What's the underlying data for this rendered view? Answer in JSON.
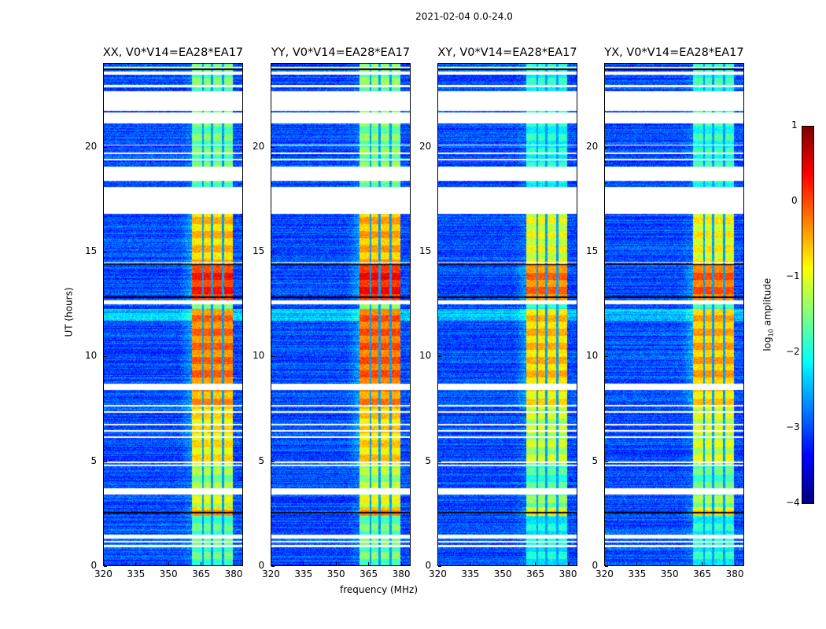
{
  "chart_data": {
    "type": "heatmap",
    "title": "2021-02-04 0.0-24.0",
    "xlabel": "frequency (MHz)",
    "ylabel": "UT (hours)",
    "xlim": [
      320,
      384.5
    ],
    "ylim": [
      0,
      24
    ],
    "xticks": [
      "320",
      "335",
      "350",
      "365",
      "380"
    ],
    "yticks": [
      "0",
      "5",
      "10",
      "15",
      "20"
    ],
    "panels": [
      {
        "title": "XX, V0*V14=EA28*EA17",
        "band_scale": 1.0
      },
      {
        "title": "YY, V0*V14=EA28*EA17",
        "band_scale": 1.05
      },
      {
        "title": "XY, V0*V14=EA28*EA17",
        "band_scale": 0.8
      },
      {
        "title": "YX, V0*V14=EA28*EA17",
        "band_scale": 0.85
      }
    ],
    "colorbar": {
      "label_main": "log",
      "label_sub": "10",
      "label_rest": " amplitude",
      "range": [
        -4,
        1
      ],
      "ticks": [
        "1",
        "0",
        "−1",
        "−2",
        "−3",
        "−4"
      ],
      "colormap": "jet"
    },
    "background_log_amplitude": -3.0,
    "bright_subbands_mhz": [
      [
        360.7,
        365.5
      ],
      [
        366.5,
        369.8
      ],
      [
        370.9,
        374.9
      ],
      [
        376.0,
        380.0
      ]
    ],
    "band_level_by_hour": [
      [
        0,
        2.4,
        -1.8
      ],
      [
        2.4,
        2.8,
        -0.6
      ],
      [
        2.8,
        3.4,
        -1.2
      ],
      [
        3.4,
        4.8,
        -1.5
      ],
      [
        4.8,
        7.5,
        -0.9
      ],
      [
        7.5,
        8.4,
        -0.5
      ],
      [
        8.7,
        12.3,
        -0.3
      ],
      [
        12.7,
        14.4,
        0.1
      ],
      [
        14.4,
        16.9,
        -0.7
      ],
      [
        16.9,
        24,
        -1.7
      ]
    ],
    "flagged_hours": [
      [
        0.9,
        1.0
      ],
      [
        1.1,
        1.2
      ],
      [
        1.3,
        1.5
      ],
      [
        3.4,
        3.7
      ],
      [
        4.75,
        4.85
      ],
      [
        4.9,
        5.0
      ],
      [
        6.1,
        6.2
      ],
      [
        6.4,
        6.5
      ],
      [
        6.7,
        6.8
      ],
      [
        7.3,
        7.4
      ],
      [
        7.6,
        7.7
      ],
      [
        8.4,
        8.7
      ],
      [
        12.5,
        12.7
      ],
      [
        14.5,
        14.55
      ],
      [
        16.85,
        18.1
      ],
      [
        18.4,
        19.1
      ],
      [
        19.4,
        19.45
      ],
      [
        19.7,
        19.75
      ],
      [
        20.1,
        20.15
      ],
      [
        21.15,
        21.7
      ],
      [
        21.75,
        22.7
      ],
      [
        22.9,
        23.0
      ],
      [
        23.5,
        23.65
      ],
      [
        23.8,
        23.85
      ]
    ]
  }
}
